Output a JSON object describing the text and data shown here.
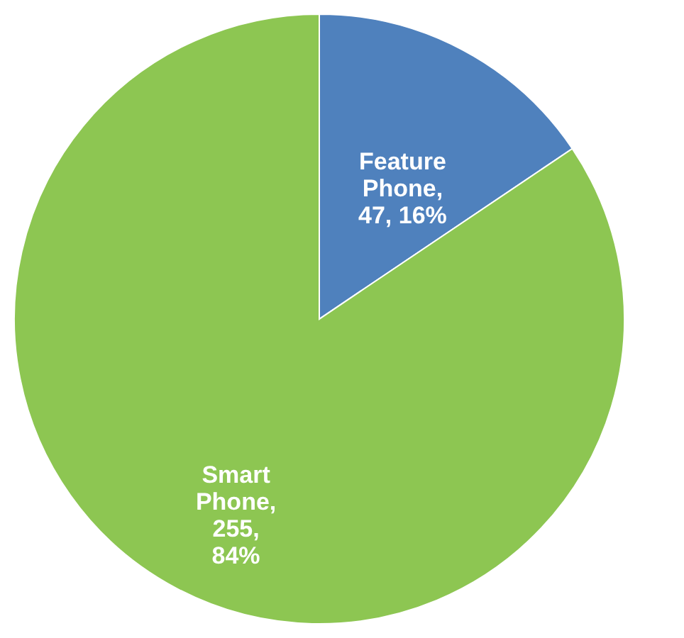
{
  "chart_data": {
    "type": "pie",
    "categories": [
      "Feature Phone",
      "Smart Phone"
    ],
    "values": [
      47,
      255
    ],
    "colors": [
      "#4f81bd",
      "#8dc652"
    ],
    "value_labels": [
      ",\n47, 16%",
      ",\n255,\n84%"
    ],
    "legend": false
  }
}
